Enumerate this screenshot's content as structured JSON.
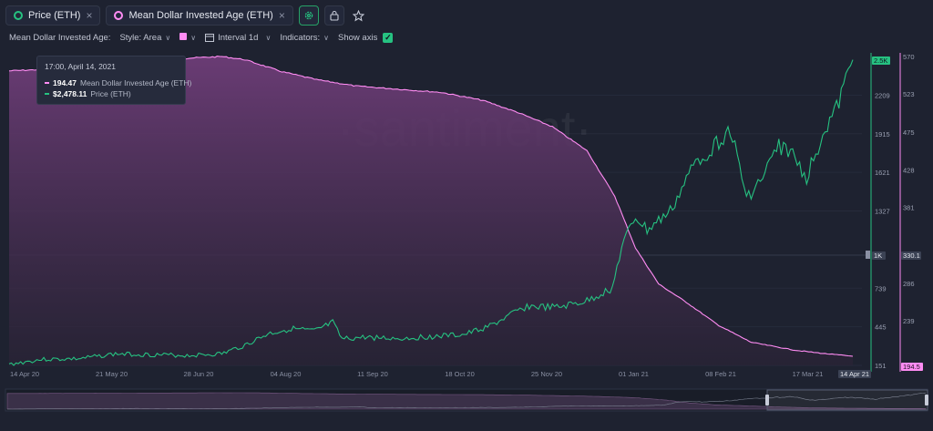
{
  "tabs": [
    {
      "label": "Price (ETH)",
      "color": "#26c281"
    },
    {
      "label": "Mean Dollar Invested Age (ETH)",
      "color": "#ff8cf3"
    }
  ],
  "toolbar": {
    "metric_label": "Mean Dollar Invested Age:",
    "style_label": "Style: Area",
    "interval_label": "Interval 1d",
    "indicators_label": "Indicators:",
    "show_axis_label": "Show axis"
  },
  "watermark": "·santiment·",
  "tooltip": {
    "date": "17:00, April 14, 2021",
    "rows": [
      {
        "value": "194.47",
        "label": "Mean Dollar Invested Age (ETH)",
        "color": "#ff8cf3"
      },
      {
        "value": "$2,478.11",
        "label": "Price (ETH)",
        "color": "#26c281"
      }
    ]
  },
  "chart_data": {
    "type": "area",
    "x_tick_labels": [
      "14 Apr 20",
      "21 May 20",
      "28 Jun 20",
      "04 Aug 20",
      "11 Sep 20",
      "18 Oct 20",
      "25 Nov 20",
      "01 Jan 21",
      "08 Feb 21",
      "17 Mar 21",
      "14 Apr 21"
    ],
    "x_range": [
      "2020-04-14",
      "2021-04-14"
    ],
    "price_axis_ticks": [
      "151",
      "445",
      "739",
      "1327",
      "1621",
      "1915",
      "2209"
    ],
    "price_axis_labels": {
      "current": "2.5K",
      "crosshair": "1K"
    },
    "price_ylim": [
      151,
      2503
    ],
    "mdia_axis_ticks": [
      "239",
      "286",
      "381",
      "428",
      "475",
      "523",
      "570"
    ],
    "mdia_axis_labels": {
      "current": "194.5",
      "crosshair": "330.1"
    },
    "mdia_ylim": [
      183,
      570
    ],
    "series": [
      {
        "name": "Price (ETH)",
        "color": "#26c281",
        "axis": "left",
        "points": [
          [
            "2020-04-14",
            158
          ],
          [
            "2020-04-28",
            196
          ],
          [
            "2020-05-14",
            201
          ],
          [
            "2020-05-30",
            238
          ],
          [
            "2020-06-15",
            232
          ],
          [
            "2020-06-30",
            226
          ],
          [
            "2020-07-15",
            239
          ],
          [
            "2020-07-25",
            305
          ],
          [
            "2020-08-04",
            390
          ],
          [
            "2020-08-14",
            431
          ],
          [
            "2020-08-24",
            410
          ],
          [
            "2020-09-01",
            475
          ],
          [
            "2020-09-05",
            350
          ],
          [
            "2020-09-15",
            365
          ],
          [
            "2020-09-30",
            355
          ],
          [
            "2020-10-15",
            372
          ],
          [
            "2020-10-28",
            385
          ],
          [
            "2020-11-08",
            450
          ],
          [
            "2020-11-24",
            600
          ],
          [
            "2020-12-07",
            590
          ],
          [
            "2020-12-20",
            640
          ],
          [
            "2020-12-31",
            740
          ],
          [
            "2021-01-04",
            1050
          ],
          [
            "2021-01-10",
            1280
          ],
          [
            "2021-01-15",
            1180
          ],
          [
            "2021-01-25",
            1320
          ],
          [
            "2021-02-05",
            1700
          ],
          [
            "2021-02-12",
            1800
          ],
          [
            "2021-02-20",
            1950
          ],
          [
            "2021-02-27",
            1430
          ],
          [
            "2021-03-05",
            1550
          ],
          [
            "2021-03-13",
            1820
          ],
          [
            "2021-03-18",
            1780
          ],
          [
            "2021-03-25",
            1580
          ],
          [
            "2021-04-01",
            1920
          ],
          [
            "2021-04-07",
            2100
          ],
          [
            "2021-04-14",
            2478
          ]
        ]
      },
      {
        "name": "Mean Dollar Invested Age (ETH)",
        "color": "#ff8cf3",
        "axis": "right",
        "points": [
          [
            "2020-04-14",
            552
          ],
          [
            "2020-05-01",
            554
          ],
          [
            "2020-05-21",
            556
          ],
          [
            "2020-06-10",
            562
          ],
          [
            "2020-07-01",
            568
          ],
          [
            "2020-07-15",
            570
          ],
          [
            "2020-07-25",
            566
          ],
          [
            "2020-08-10",
            551
          ],
          [
            "2020-08-25",
            541
          ],
          [
            "2020-09-11",
            533
          ],
          [
            "2020-09-25",
            530
          ],
          [
            "2020-10-18",
            525
          ],
          [
            "2020-11-05",
            515
          ],
          [
            "2020-11-20",
            500
          ],
          [
            "2020-12-05",
            482
          ],
          [
            "2020-12-20",
            452
          ],
          [
            "2021-01-01",
            395
          ],
          [
            "2021-01-10",
            330
          ],
          [
            "2021-01-20",
            285
          ],
          [
            "2021-02-01",
            262
          ],
          [
            "2021-02-15",
            233
          ],
          [
            "2021-03-01",
            212
          ],
          [
            "2021-03-20",
            202
          ],
          [
            "2021-04-01",
            198
          ],
          [
            "2021-04-14",
            194.47
          ]
        ]
      }
    ]
  }
}
